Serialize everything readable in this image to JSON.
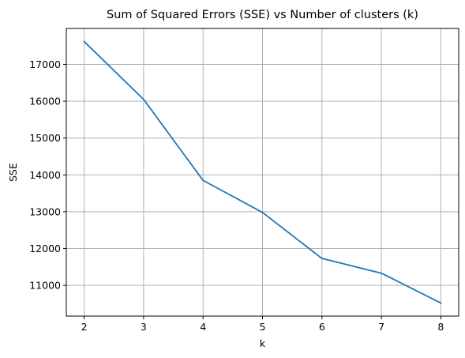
{
  "chart_data": {
    "type": "line",
    "title": "Sum of Squared Errors (SSE) vs Number of clusters (k)",
    "xlabel": "k",
    "ylabel": "SSE",
    "x": [
      2,
      3,
      4,
      5,
      6,
      7,
      8
    ],
    "series": [
      {
        "values": [
          17620,
          16050,
          13850,
          12980,
          11730,
          11330,
          10520
        ],
        "color": "#1f77b4"
      }
    ],
    "xlim": [
      1.7,
      8.3
    ],
    "ylim": [
      10165,
      17975
    ],
    "xticks": [
      "2",
      "3",
      "4",
      "5",
      "6",
      "7",
      "8"
    ],
    "yticks": [
      "11000",
      "12000",
      "13000",
      "14000",
      "15000",
      "16000",
      "17000"
    ],
    "grid": true,
    "legend": "none"
  }
}
